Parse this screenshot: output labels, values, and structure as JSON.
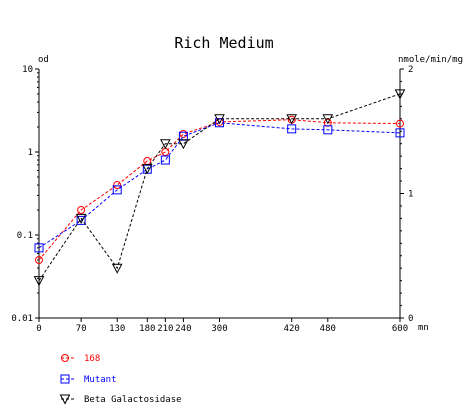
{
  "chart_data": {
    "type": "line",
    "title": "Rich Medium",
    "xlabel": "mn",
    "ylabel_left": "od",
    "ylabel_right": "nmole/min/mg",
    "xlim": [
      0,
      600
    ],
    "x_ticks": [
      0,
      70,
      130,
      180,
      210,
      240,
      300,
      420,
      480,
      600
    ],
    "x_tick_labels": [
      "0",
      "70",
      "130",
      "180",
      "210",
      "240",
      "300",
      "420",
      "480",
      "600"
    ],
    "ylim_left": [
      0.01,
      10
    ],
    "y_scale_left": "log",
    "y_ticks_left": [
      0.01,
      0.1,
      1,
      10
    ],
    "y_tick_labels_left": [
      "0.01",
      "0.1",
      "1",
      "10"
    ],
    "ylim_right": [
      0,
      2
    ],
    "y_ticks_right": [
      0,
      1,
      2
    ],
    "y_tick_labels_right": [
      "0",
      "1",
      "2"
    ],
    "grid": false,
    "legend_position": "bottom-left",
    "series": [
      {
        "name": "168",
        "axis": "left",
        "color": "#ff0000",
        "marker": "circle",
        "x": [
          0,
          70,
          130,
          180,
          210,
          240,
          300,
          420,
          480,
          600
        ],
        "y": [
          0.05,
          0.2,
          0.4,
          0.78,
          1.0,
          1.65,
          2.3,
          2.45,
          2.25,
          2.2
        ]
      },
      {
        "name": "Mutant",
        "axis": "left",
        "color": "#0000ff",
        "marker": "square",
        "x": [
          0,
          70,
          130,
          180,
          210,
          240,
          300,
          420,
          480,
          600
        ],
        "y": [
          0.07,
          0.15,
          0.35,
          0.62,
          0.8,
          1.55,
          2.25,
          1.9,
          1.85,
          1.7
        ]
      },
      {
        "name": "Beta Galactosidase",
        "axis": "right",
        "color": "#000000",
        "marker": "triangle-down",
        "x": [
          0,
          70,
          130,
          180,
          210,
          240,
          300,
          420,
          480,
          600
        ],
        "y": [
          0.3,
          0.8,
          0.4,
          1.2,
          1.4,
          1.4,
          1.6,
          1.6,
          1.6,
          1.8
        ]
      }
    ]
  }
}
